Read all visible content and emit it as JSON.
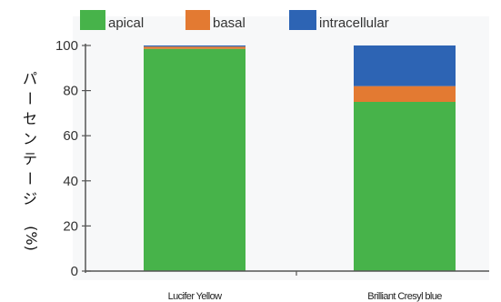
{
  "chart_data": {
    "type": "bar",
    "stacked": true,
    "categories": [
      "Lucifer Yellow",
      "Brilliant Cresyl blue"
    ],
    "series": [
      {
        "name": "apical",
        "color": "#47b34a",
        "values": [
          98.5,
          75
        ]
      },
      {
        "name": "basal",
        "color": "#e37a32",
        "values": [
          1.0,
          7
        ]
      },
      {
        "name": "intracellular",
        "color": "#2d64b4",
        "values": [
          0.5,
          18
        ]
      }
    ],
    "ylabel_chars": [
      "パ",
      "ー",
      "セ",
      "ン",
      "テ",
      "ー",
      "ジ",
      "(%)"
    ],
    "ylim": [
      0,
      100
    ],
    "yticks": [
      "0",
      "20",
      "40",
      "60",
      "80",
      "100"
    ],
    "legend_position": "top",
    "grid": false
  }
}
